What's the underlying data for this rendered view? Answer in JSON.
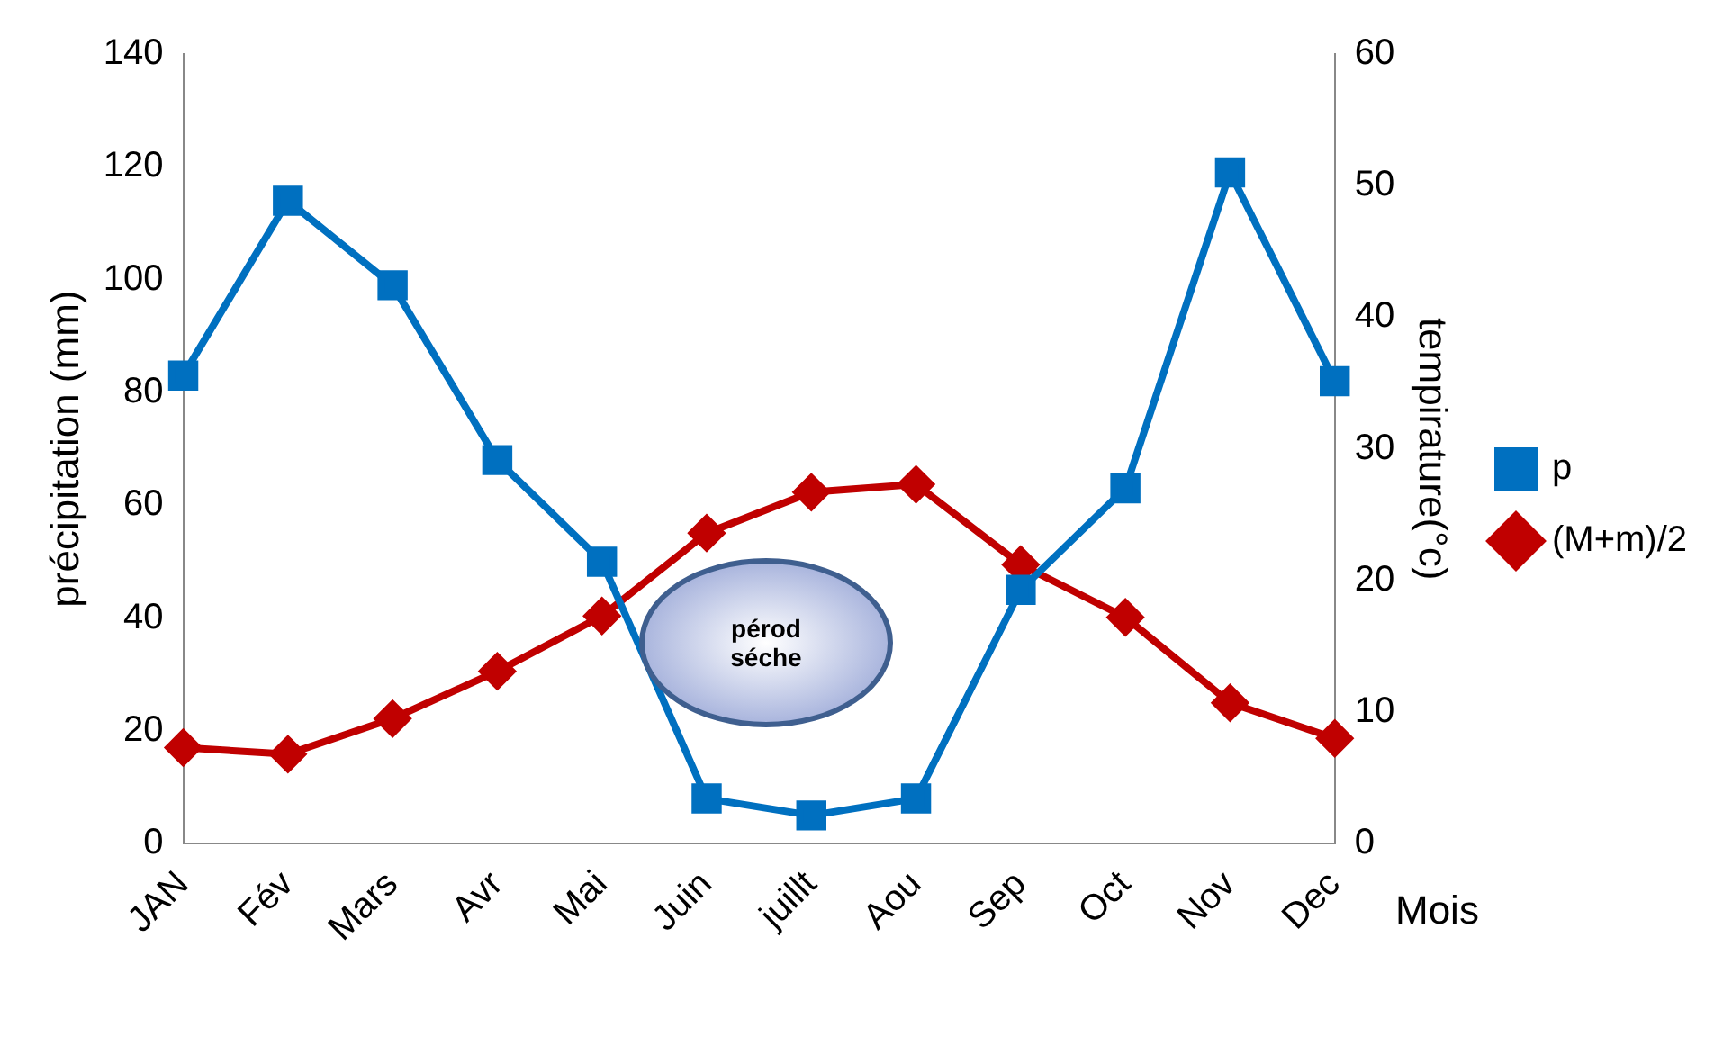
{
  "chart_data": {
    "type": "line",
    "xlabel": "Mois",
    "ylabel": "précipitation (mm)",
    "y2label": "tempirature(°c)",
    "categories": [
      "JAN",
      "Fév",
      "Mars",
      "Avr",
      "Mai",
      "Juin",
      "juillt",
      "Aou",
      "Sep",
      "Oct",
      "Nov",
      "Dec"
    ],
    "series": [
      {
        "name": "p",
        "color": "#0070c0",
        "marker": "square",
        "values": [
          83,
          114,
          99,
          68,
          50,
          8,
          5,
          8,
          45,
          63,
          119,
          82
        ]
      },
      {
        "name": "(M+m)/2",
        "color": "#c00000",
        "marker": "diamond",
        "axis": "y2",
        "values": [
          7.3,
          6.8,
          9.5,
          13.1,
          17.3,
          23.6,
          26.7,
          27.3,
          21.2,
          17.2,
          10.7,
          8.0
        ]
      }
    ],
    "ylim": [
      0,
      140
    ],
    "yticks": [
      0,
      20,
      40,
      60,
      80,
      100,
      120,
      140
    ],
    "y2lim": [
      0,
      60
    ],
    "y2ticks": [
      0,
      10,
      20,
      30,
      40,
      50,
      60
    ],
    "annotations": [
      "pérod séche"
    ],
    "grid": false,
    "legend": "right",
    "line_style": "solid"
  }
}
